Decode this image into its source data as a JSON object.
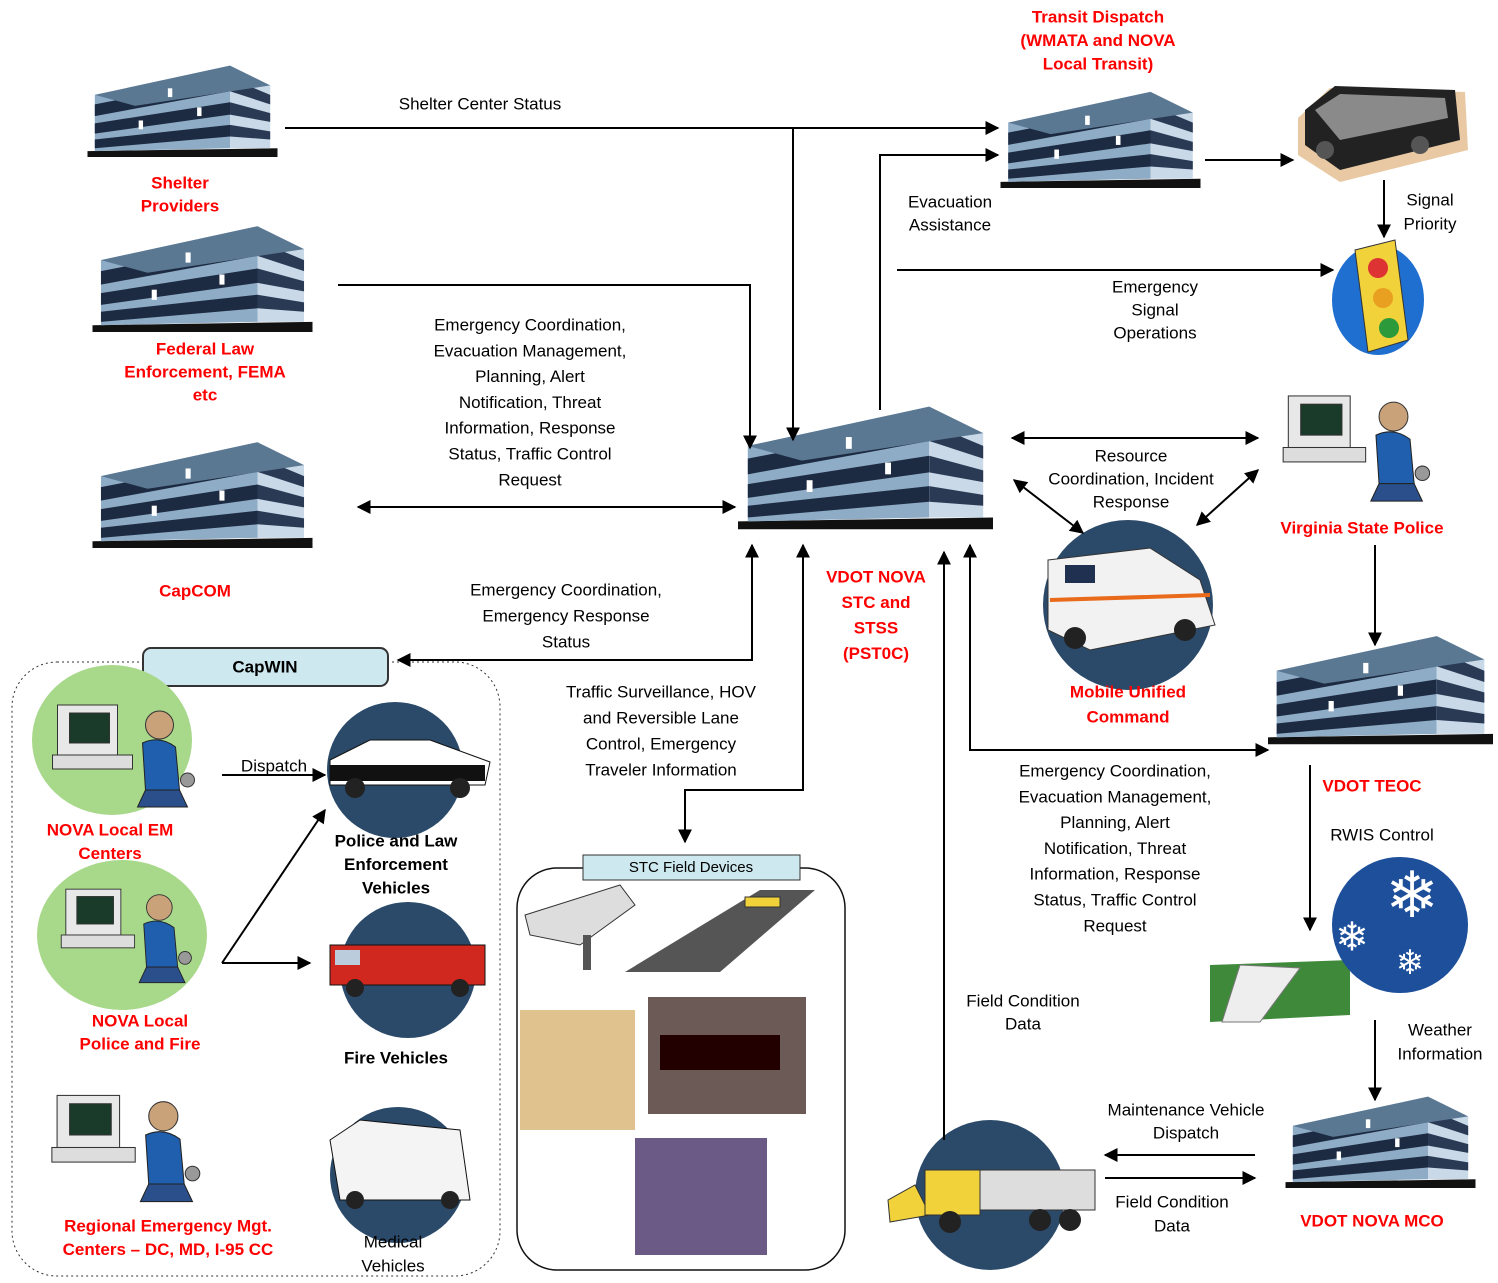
{
  "nodes": [
    {
      "label": [
        "Shelter",
        "Providers"
      ]
    },
    {
      "label": [
        "Federal Law",
        "Enforcement, FEMA",
        "etc"
      ]
    },
    {
      "label": [
        "CapCOM"
      ]
    },
    {
      "label": [
        "Transit Dispatch",
        "(WMATA and NOVA",
        "Local Transit)"
      ]
    },
    {
      "label": [
        "VDOT NOVA",
        "STC and",
        "STSS",
        "(PST0C)"
      ]
    },
    {
      "label": [
        "Virginia State Police"
      ]
    },
    {
      "label": [
        "Mobile Unified",
        "Command"
      ]
    },
    {
      "label": [
        "VDOT TEOC"
      ]
    },
    {
      "label": [
        "VDOT NOVA MCO"
      ]
    },
    {
      "label": [
        "NOVA Local EM",
        "Centers"
      ]
    },
    {
      "label": [
        "NOVA Local",
        "Police and Fire"
      ]
    },
    {
      "label": [
        "Regional Emergency Mgt.",
        "Centers – DC, MD, I-95 CC"
      ]
    },
    {
      "label": [
        "Police and Law",
        "Enforcement",
        "Vehicles"
      ]
    },
    {
      "label": [
        "Fire Vehicles"
      ]
    },
    {
      "label": [
        "Medical",
        "Vehicles"
      ]
    }
  ],
  "edges": [
    {
      "label": [
        "Shelter Center Status"
      ]
    },
    {
      "label": [
        "Evacuation",
        "Assistance"
      ]
    },
    {
      "label": [
        "Signal",
        "Priority"
      ]
    },
    {
      "label": [
        "Emergency",
        "Signal",
        "Operations"
      ]
    },
    {
      "label": [
        "Emergency Coordination,",
        "Evacuation Management,",
        "Planning, Alert",
        "Notification, Threat",
        "Information, Response",
        "Status, Traffic Control",
        "Request"
      ]
    },
    {
      "label": [
        "Resource",
        "Coordination, Incident",
        "Response"
      ]
    },
    {
      "label": [
        "Emergency Coordination,",
        "Emergency Response",
        "Status"
      ]
    },
    {
      "label": [
        "Traffic Surveillance, HOV",
        "and Reversible Lane",
        "Control, Emergency",
        "Traveler Information"
      ]
    },
    {
      "label": [
        "Emergency Coordination,",
        "Evacuation Management,",
        "Planning, Alert",
        "Notification, Threat",
        "Information, Response",
        "Status, Traffic Control",
        "Request"
      ]
    },
    {
      "label": [
        "RWIS Control"
      ]
    },
    {
      "label": [
        "Field Condition",
        "Data"
      ]
    },
    {
      "label": [
        "Weather",
        "Information"
      ]
    },
    {
      "label": [
        "Maintenance Vehicle",
        "Dispatch"
      ]
    },
    {
      "label": [
        "Field Condition",
        "Data"
      ]
    },
    {
      "label": [
        "Dispatch"
      ]
    }
  ],
  "groups": {
    "capwin": {
      "title": "CapWIN"
    },
    "field_devices": {
      "title": "STC Field Devices"
    }
  }
}
